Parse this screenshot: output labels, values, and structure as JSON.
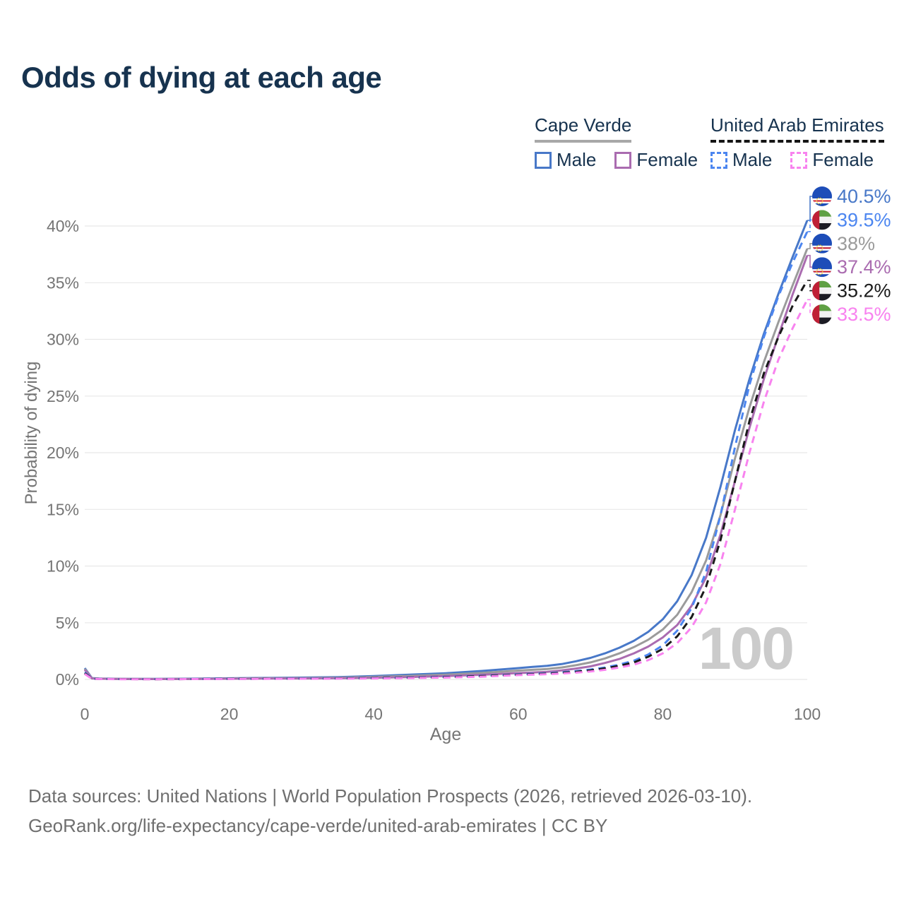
{
  "title": "Odds of dying at each age",
  "legend": {
    "groups": [
      {
        "title": "Cape Verde",
        "line_style": "solid",
        "underline_color": "#a8a8a8",
        "items": [
          {
            "label": "Male",
            "color": "#4878c8"
          },
          {
            "label": "Female",
            "color": "#aa6cb0"
          }
        ]
      },
      {
        "title": "United Arab Emirates",
        "line_style": "dashed",
        "underline_color": "#151515",
        "items": [
          {
            "label": "Male",
            "color": "#4c86f0"
          },
          {
            "label": "Female",
            "color": "#f883ef"
          }
        ]
      }
    ]
  },
  "colors": {
    "title_text": "#17334f",
    "axis_text": "#757575",
    "grid": "#e8e8e8",
    "watermark": "#cbcbcb",
    "cape_verde_male": "#4878c8",
    "cape_verde_both_sexes": "#9b9b9b",
    "cape_verde_female": "#aa6cb0",
    "uae_male": "#4c86f0",
    "uae_both_sexes": "#1a1a1a",
    "uae_female": "#f883ef"
  },
  "chart_data": {
    "type": "line",
    "title": "Odds of dying at each age",
    "xlabel": "Age",
    "ylabel": "Probability of dying",
    "xlim": [
      0,
      100
    ],
    "ylim": [
      0,
      43
    ],
    "grid": "horizontal",
    "watermark": "100",
    "x_ticks": [
      0,
      20,
      40,
      60,
      80,
      100
    ],
    "x_tick_labels": [
      "0",
      "20",
      "40",
      "60",
      "80",
      "100"
    ],
    "y_ticks": [
      0,
      5,
      10,
      15,
      20,
      25,
      30,
      35,
      40
    ],
    "y_tick_labels": [
      "0%",
      "5%",
      "10%",
      "15%",
      "20%",
      "25%",
      "30%",
      "35%",
      "40%"
    ],
    "x": [
      0,
      1,
      2,
      5,
      10,
      15,
      20,
      25,
      30,
      35,
      40,
      45,
      50,
      55,
      60,
      62,
      64,
      66,
      68,
      70,
      72,
      74,
      76,
      78,
      80,
      82,
      84,
      86,
      88,
      90,
      92,
      94,
      96,
      98,
      100
    ],
    "series": [
      {
        "name": "Cape Verde Male",
        "country": "cape-verde",
        "sex": "male",
        "line": "solid",
        "color": "#4878c8",
        "end_label": "40.5%",
        "values": [
          1.0,
          0.12,
          0.08,
          0.05,
          0.05,
          0.07,
          0.1,
          0.13,
          0.16,
          0.2,
          0.3,
          0.42,
          0.55,
          0.75,
          1.0,
          1.1,
          1.2,
          1.35,
          1.6,
          1.9,
          2.3,
          2.8,
          3.4,
          4.2,
          5.3,
          6.9,
          9.2,
          12.5,
          17.0,
          22.0,
          26.5,
          30.5,
          34.0,
          37.3,
          40.5
        ]
      },
      {
        "name": "Cape Verde Both sexes",
        "country": "cape-verde",
        "sex": "both",
        "line": "solid",
        "color": "#9b9b9b",
        "end_label": "38%",
        "values": [
          0.92,
          0.1,
          0.07,
          0.04,
          0.04,
          0.05,
          0.08,
          0.1,
          0.12,
          0.15,
          0.22,
          0.31,
          0.42,
          0.58,
          0.78,
          0.85,
          0.92,
          1.05,
          1.25,
          1.5,
          1.85,
          2.3,
          2.85,
          3.5,
          4.4,
          5.7,
          7.7,
          10.5,
          14.5,
          19.5,
          24.0,
          28.0,
          31.5,
          34.8,
          38.0
        ]
      },
      {
        "name": "Cape Verde Female",
        "country": "cape-verde",
        "sex": "female",
        "line": "solid",
        "color": "#aa6cb0",
        "end_label": "37.4%",
        "values": [
          0.84,
          0.09,
          0.06,
          0.04,
          0.03,
          0.04,
          0.06,
          0.08,
          0.09,
          0.11,
          0.15,
          0.21,
          0.29,
          0.41,
          0.56,
          0.61,
          0.67,
          0.8,
          0.96,
          1.15,
          1.45,
          1.8,
          2.3,
          2.9,
          3.7,
          4.8,
          6.5,
          9.0,
          12.8,
          17.5,
          22.2,
          26.5,
          30.3,
          34.0,
          37.4
        ]
      },
      {
        "name": "United Arab Emirates Male",
        "country": "uae",
        "sex": "male",
        "line": "dashed",
        "color": "#4c86f0",
        "end_label": "39.5%",
        "values": [
          0.62,
          0.07,
          0.05,
          0.03,
          0.03,
          0.04,
          0.05,
          0.06,
          0.08,
          0.1,
          0.13,
          0.17,
          0.23,
          0.32,
          0.45,
          0.5,
          0.55,
          0.63,
          0.73,
          0.87,
          1.05,
          1.3,
          1.65,
          2.2,
          3.0,
          4.3,
          6.3,
          9.5,
          14.5,
          20.5,
          26.0,
          30.2,
          33.8,
          36.8,
          39.5
        ]
      },
      {
        "name": "United Arab Emirates Both sexes",
        "country": "uae",
        "sex": "both",
        "line": "dashed",
        "color": "#1a1a1a",
        "end_label": "35.2%",
        "values": [
          0.55,
          0.06,
          0.04,
          0.03,
          0.02,
          0.03,
          0.05,
          0.06,
          0.07,
          0.09,
          0.11,
          0.15,
          0.2,
          0.29,
          0.42,
          0.46,
          0.51,
          0.58,
          0.67,
          0.8,
          0.97,
          1.2,
          1.5,
          2.0,
          2.7,
          3.8,
          5.5,
          8.2,
          12.3,
          17.5,
          22.8,
          27.0,
          30.2,
          33.0,
          35.2
        ]
      },
      {
        "name": "United Arab Emirates Female",
        "country": "uae",
        "sex": "female",
        "line": "dashed",
        "color": "#f883ef",
        "end_label": "33.5%",
        "values": [
          0.48,
          0.05,
          0.04,
          0.02,
          0.02,
          0.03,
          0.04,
          0.05,
          0.06,
          0.07,
          0.09,
          0.12,
          0.16,
          0.24,
          0.38,
          0.42,
          0.46,
          0.52,
          0.6,
          0.7,
          0.85,
          1.05,
          1.3,
          1.7,
          2.3,
          3.2,
          4.6,
          6.8,
          10.2,
          15.0,
          20.0,
          24.5,
          28.2,
          31.0,
          33.5
        ]
      }
    ]
  },
  "end_labels": [
    {
      "flag": "cape-verde",
      "value": "40.5%",
      "series": "Cape Verde Male"
    },
    {
      "flag": "uae",
      "value": "39.5%",
      "series": "United Arab Emirates Male"
    },
    {
      "flag": "cape-verde",
      "value": "38%",
      "series": "Cape Verde Both sexes"
    },
    {
      "flag": "cape-verde",
      "value": "37.4%",
      "series": "Cape Verde Female"
    },
    {
      "flag": "uae",
      "value": "35.2%",
      "series": "United Arab Emirates Both sexes"
    },
    {
      "flag": "uae",
      "value": "33.5%",
      "series": "United Arab Emirates Female"
    }
  ],
  "footer": {
    "line1": "Data sources: United Nations | World Population Prospects (2026, retrieved 2026-03-10).",
    "line2": "GeoRank.org/life-expectancy/cape-verde/united-arab-emirates | CC BY"
  }
}
